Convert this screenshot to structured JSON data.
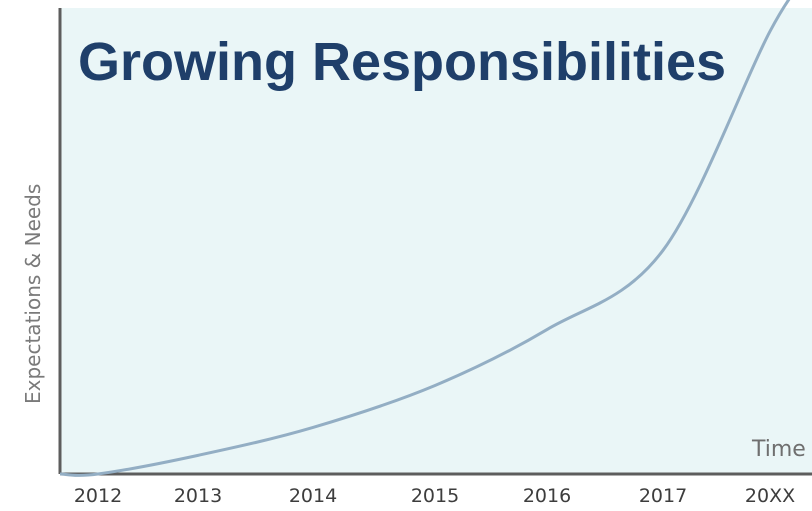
{
  "chart_data": {
    "type": "line",
    "title": "Growing Responsibilities",
    "xlabel": "Time",
    "ylabel": "Expectations & Needs",
    "categories": [
      "2012",
      "2013",
      "2014",
      "2015",
      "2016",
      "2017",
      "20XX"
    ],
    "series": [
      {
        "shape": "exponential growth curve",
        "values": [
          0,
          4,
          10,
          19,
          31,
          48,
          95
        ]
      }
    ],
    "ylim": [
      0,
      100
    ],
    "grid": false,
    "colors": {
      "background": "#eaf6f7",
      "axis": "#5d5d5d",
      "curve": "#93aec4",
      "title": "#1f3f6a"
    }
  }
}
